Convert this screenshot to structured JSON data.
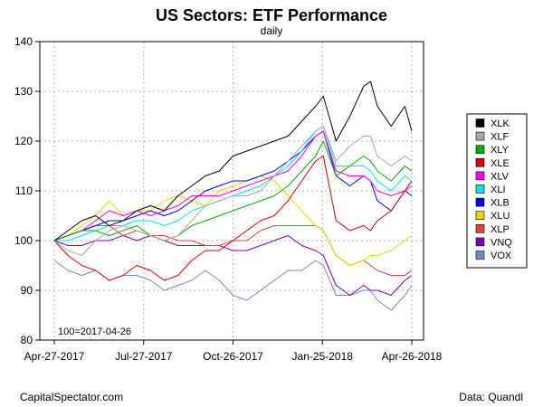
{
  "chart_data": {
    "type": "line",
    "title": "US Sectors: ETF Performance",
    "subtitle": "daily",
    "xlabel": "",
    "ylabel": "",
    "ylim": [
      80,
      140
    ],
    "yticks": [
      80,
      90,
      100,
      110,
      120,
      130,
      140
    ],
    "x_tick_labels": [
      "Apr-27-2017",
      "Jul-27-2017",
      "Oct-26-2017",
      "Jan-25-2018",
      "Apr-26-2018"
    ],
    "x_tick_dates": [
      "2017-04-27",
      "2017-07-27",
      "2017-10-26",
      "2018-01-25",
      "2018-04-26"
    ],
    "x_range": [
      "2017-04-27",
      "2018-04-26"
    ],
    "grid": true,
    "legend_position": "right",
    "base_note": "100=2017-04-26",
    "x": [
      "2017-04-27",
      "2017-05-11",
      "2017-05-25",
      "2017-06-08",
      "2017-06-22",
      "2017-07-06",
      "2017-07-20",
      "2017-08-03",
      "2017-08-17",
      "2017-08-31",
      "2017-09-14",
      "2017-09-28",
      "2017-10-12",
      "2017-10-26",
      "2017-11-09",
      "2017-11-23",
      "2017-12-07",
      "2017-12-21",
      "2018-01-04",
      "2018-01-18",
      "2018-01-26",
      "2018-02-08",
      "2018-02-22",
      "2018-03-08",
      "2018-03-15",
      "2018-03-22",
      "2018-04-05",
      "2018-04-19",
      "2018-04-26"
    ],
    "series": [
      {
        "name": "XLK",
        "color": "#000000",
        "values": [
          100,
          102,
          104,
          105,
          103,
          104,
          106,
          107,
          106,
          109,
          111,
          113,
          114,
          117,
          118,
          119,
          120,
          121,
          124,
          127,
          129,
          120,
          125,
          131,
          132,
          127,
          123,
          127,
          122
        ]
      },
      {
        "name": "XLF",
        "color": "#a8a8a8",
        "values": [
          100,
          98,
          97,
          100,
          102,
          103,
          102,
          101,
          100,
          101,
          104,
          107,
          108,
          109,
          109,
          110,
          113,
          116,
          119,
          122,
          123,
          116,
          119,
          121,
          121,
          117,
          115,
          117,
          116
        ]
      },
      {
        "name": "XLY",
        "color": "#00b000",
        "values": [
          100,
          101,
          102,
          102,
          101,
          102,
          103,
          101,
          100,
          101,
          103,
          104,
          105,
          106,
          107,
          108,
          109,
          111,
          114,
          117,
          120,
          113,
          115,
          117,
          116,
          114,
          112,
          115,
          114
        ]
      },
      {
        "name": "XLE",
        "color": "#e00000",
        "values": [
          100,
          97,
          95,
          94,
          92,
          93,
          95,
          94,
          92,
          93,
          96,
          98,
          98,
          100,
          102,
          104,
          105,
          108,
          112,
          116,
          117,
          104,
          102,
          103,
          102,
          104,
          106,
          110,
          112
        ]
      },
      {
        "name": "XLV",
        "color": "#ff00ff",
        "values": [
          100,
          101,
          102,
          104,
          106,
          105,
          106,
          105,
          106,
          107,
          109,
          109,
          109,
          110,
          111,
          112,
          113,
          114,
          117,
          121,
          122,
          114,
          113,
          113,
          112,
          110,
          109,
          110,
          111
        ]
      },
      {
        "name": "XLI",
        "color": "#00e5e5",
        "values": [
          100,
          100,
          101,
          102,
          103,
          103,
          104,
          104,
          103,
          104,
          106,
          107,
          108,
          109,
          110,
          111,
          113,
          115,
          118,
          122,
          123,
          115,
          115,
          115,
          114,
          112,
          110,
          113,
          112
        ]
      },
      {
        "name": "XLB",
        "color": "#0000e0",
        "values": [
          100,
          101,
          102,
          103,
          104,
          104,
          105,
          106,
          105,
          106,
          108,
          110,
          111,
          112,
          112,
          113,
          114,
          116,
          118,
          121,
          122,
          113,
          111,
          113,
          112,
          108,
          106,
          110,
          109
        ]
      },
      {
        "name": "XLU",
        "color": "#e8d800",
        "values": [
          100,
          101,
          103,
          105,
          108,
          105,
          106,
          106,
          108,
          109,
          108,
          107,
          110,
          111,
          112,
          113,
          112,
          109,
          106,
          103,
          102,
          97,
          95,
          96,
          97,
          97,
          98,
          100,
          101
        ]
      },
      {
        "name": "XLP",
        "color": "#e04040",
        "values": [
          100,
          101,
          102,
          103,
          103,
          101,
          102,
          101,
          101,
          100,
          100,
          99,
          99,
          100,
          100,
          102,
          103,
          103,
          103,
          103,
          102,
          97,
          95,
          96,
          95,
          94,
          93,
          93,
          94
        ]
      },
      {
        "name": "VNQ",
        "color": "#8000c0",
        "values": [
          100,
          99,
          99,
          100,
          100,
          101,
          100,
          101,
          100,
          99,
          99,
          99,
          99,
          98,
          98,
          99,
          100,
          101,
          99,
          98,
          97,
          91,
          89,
          91,
          90,
          90,
          89,
          92,
          93
        ]
      },
      {
        "name": "VOX",
        "color": "#6a8fc8",
        "values": [
          96,
          94,
          93,
          94,
          92,
          93,
          93,
          92,
          90,
          91,
          92,
          94,
          92,
          89,
          88,
          90,
          92,
          94,
          94,
          96,
          95,
          89,
          89,
          90,
          90,
          88,
          86,
          89,
          91
        ]
      }
    ]
  },
  "footer": {
    "source_left": "CapitalSpectator.com",
    "source_right": "Data: Quandl"
  }
}
